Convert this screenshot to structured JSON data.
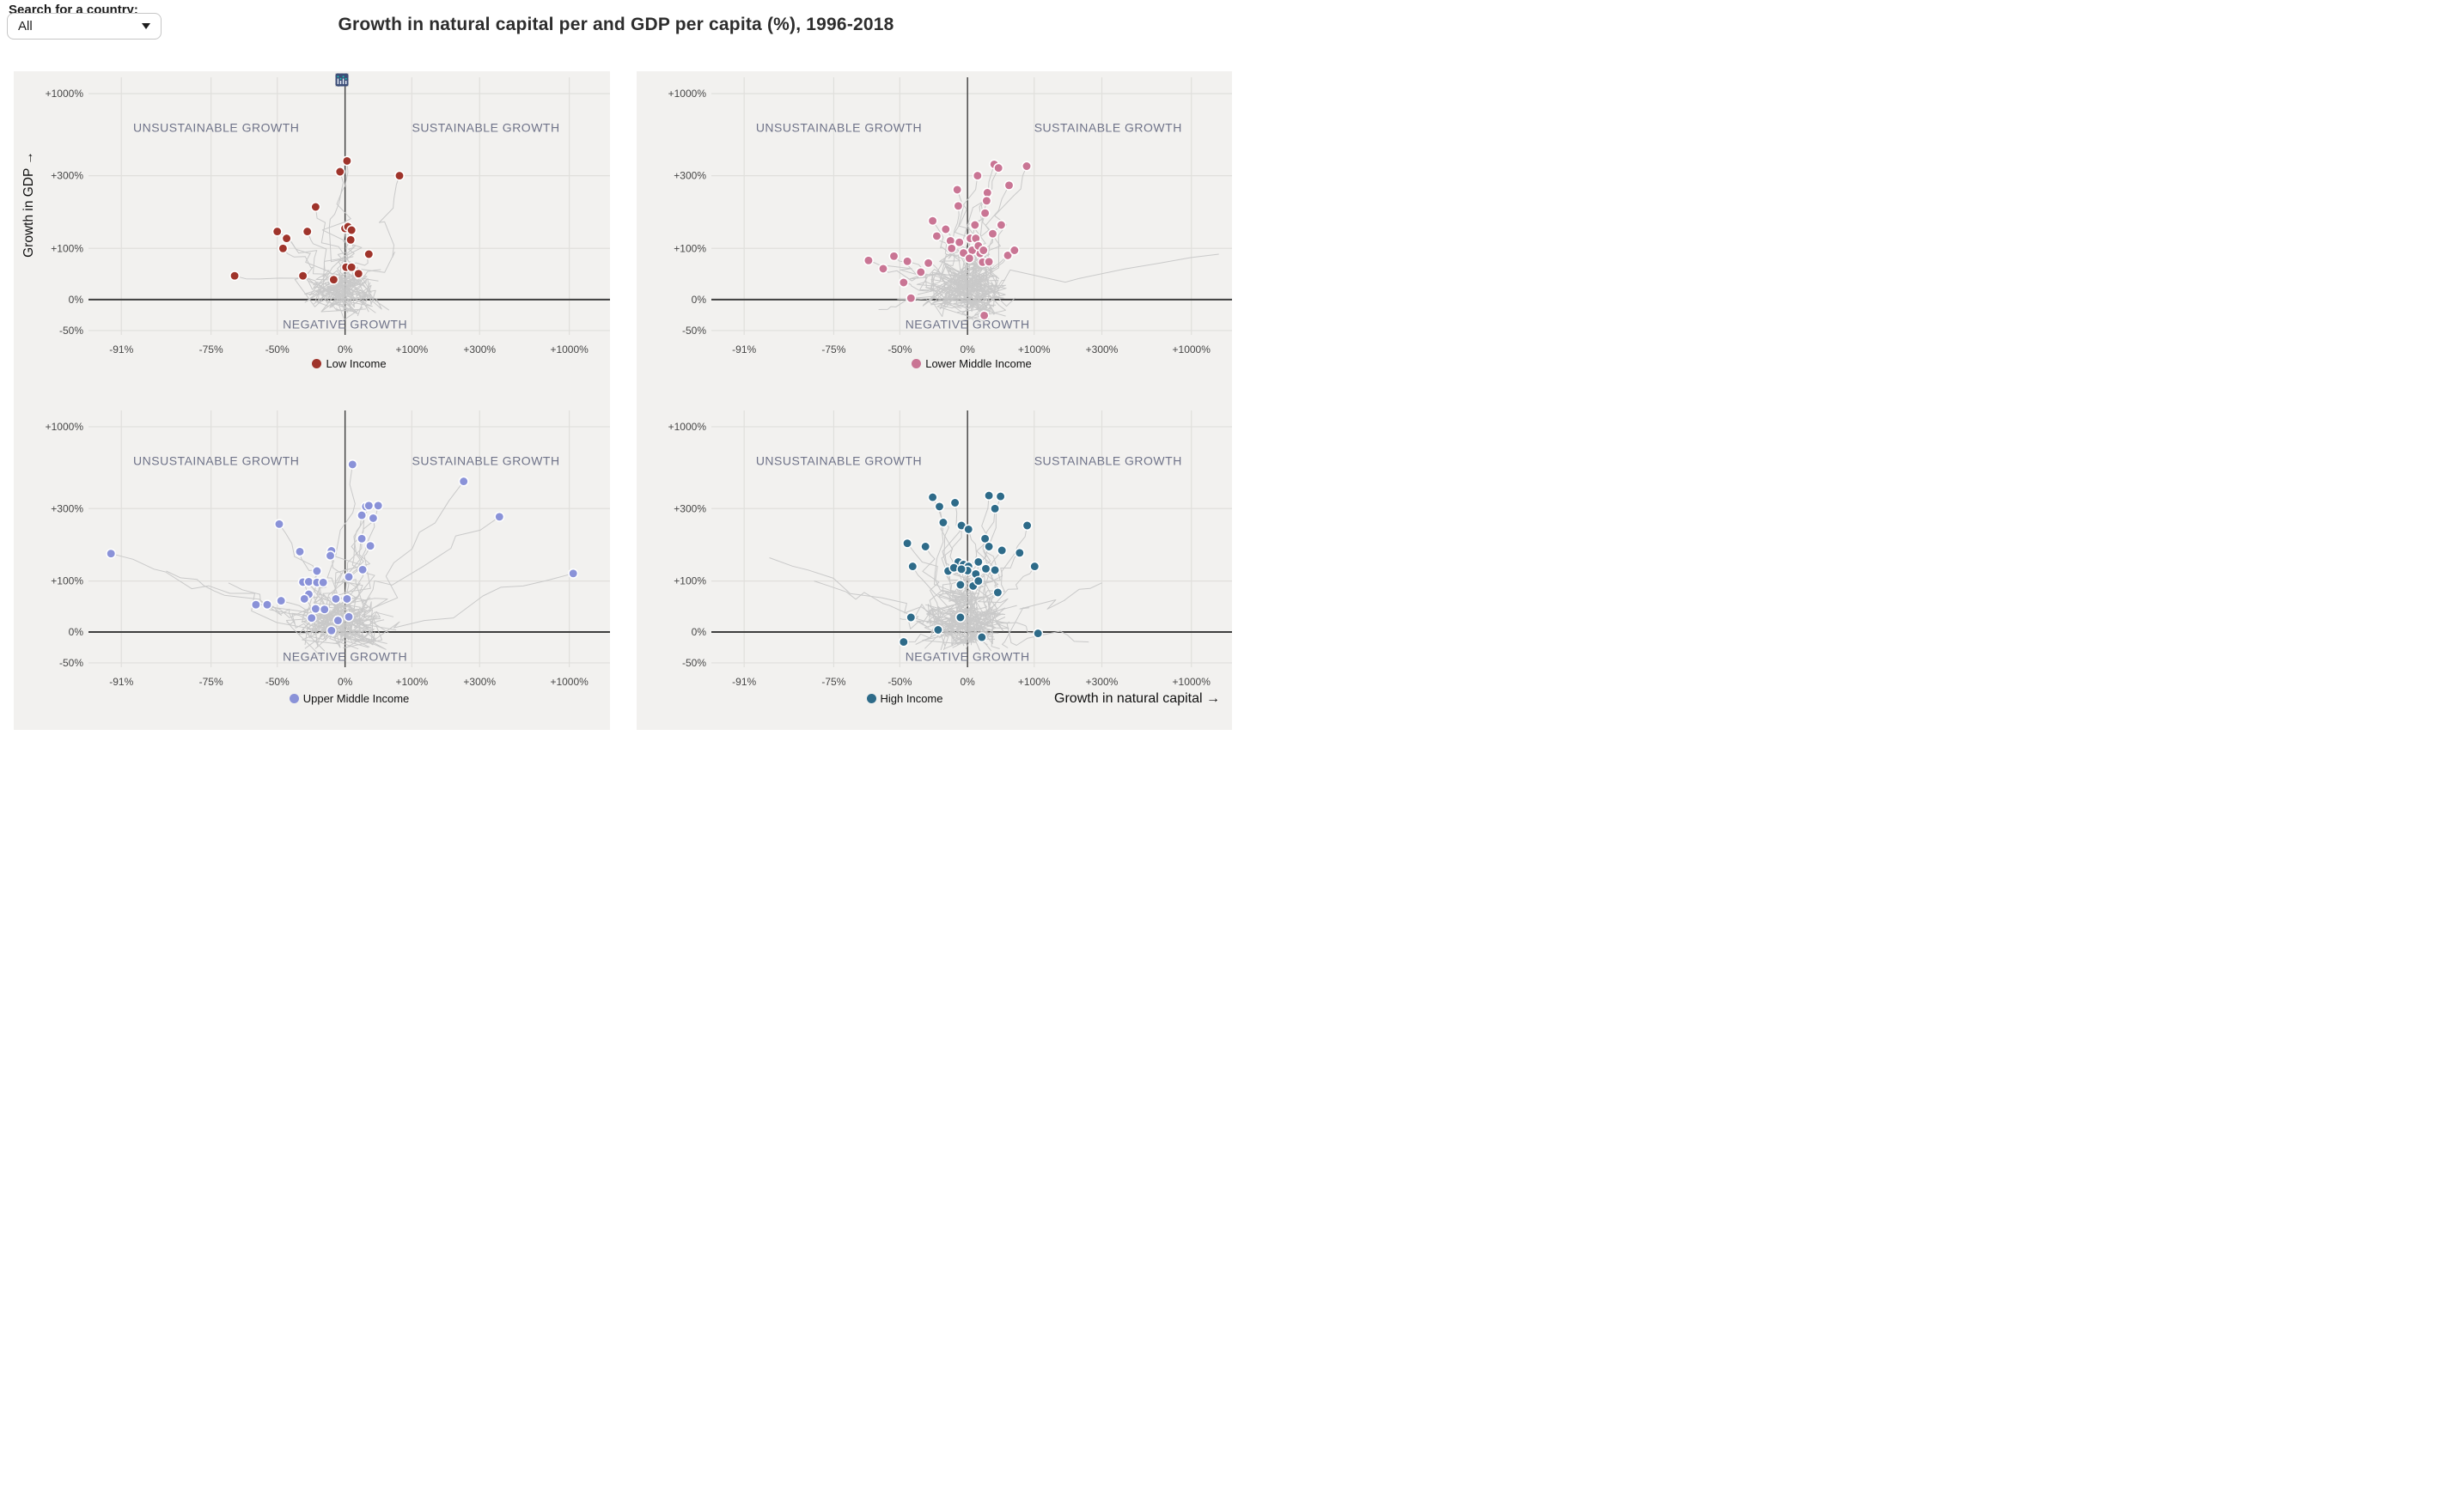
{
  "search": {
    "label": "Search for a country:",
    "value": "All"
  },
  "header": {
    "title": "Growth in natural capital per and GDP per capita (%), 1996-2018"
  },
  "modebar": {
    "icons": [
      {
        "name": "camera-icon",
        "group": 0,
        "active": false
      },
      {
        "name": "zoom-icon",
        "group": 1,
        "active": true
      },
      {
        "name": "pan-icon",
        "group": 1,
        "active": false
      },
      {
        "name": "box-select-icon",
        "group": 1,
        "active": false
      },
      {
        "name": "lasso-icon",
        "group": 1,
        "active": false
      },
      {
        "name": "zoom-in-icon",
        "group": 2,
        "active": false
      },
      {
        "name": "zoom-out-icon",
        "group": 2,
        "active": false
      },
      {
        "name": "autoscale-icon",
        "group": 2,
        "active": false
      },
      {
        "name": "home-icon",
        "group": 2,
        "active": false
      },
      {
        "name": "toggle-hover-single-icon",
        "group": 3,
        "active": true
      },
      {
        "name": "toggle-hover-double-icon",
        "group": 3,
        "active": false
      },
      {
        "name": "plotly-logo-icon",
        "group": 4,
        "active": false
      }
    ]
  },
  "chart_data": {
    "type": "scatter",
    "title": "Growth in natural capital per and GDP per capita (%), 1996-2018",
    "x_axis": {
      "title": "Growth in natural capital →",
      "tick_labels": [
        "-91%",
        "-75%",
        "-50%",
        "0%",
        "+100%",
        "+300%",
        "+1000%"
      ],
      "tick_values": [
        -91,
        -75,
        -50,
        0,
        100,
        300,
        1000
      ],
      "scale": "log10(1 + v/100)"
    },
    "y_axis": {
      "title": "Growth in GDP →",
      "tick_labels": [
        "+1000%",
        "+300%",
        "+100%",
        "0%",
        "-50%"
      ],
      "tick_values": [
        1000,
        300,
        100,
        0,
        -50
      ],
      "scale": "log10(1 + v/100)"
    },
    "quadrant_labels": {
      "top_left": "UNSUSTAINABLE GROWTH",
      "top_right": "SUSTAINABLE GROWTH",
      "bottom": "NEGATIVE GROWTH"
    },
    "facets": [
      {
        "name": "Low Income",
        "position": "top-left",
        "color": "#9f342b",
        "points": [
          [
            2,
            380
          ],
          [
            -5,
            320
          ],
          [
            76,
            300
          ],
          [
            -26,
            197
          ],
          [
            -50,
            135
          ],
          [
            -32,
            135
          ],
          [
            -45,
            120
          ],
          [
            0,
            142
          ],
          [
            3,
            146
          ],
          [
            7,
            138
          ],
          [
            6,
            117
          ],
          [
            -47,
            100
          ],
          [
            28,
            85
          ],
          [
            1,
            55
          ],
          [
            7,
            55
          ],
          [
            15,
            42
          ],
          [
            -68,
            38
          ],
          [
            -35,
            38
          ],
          [
            -11,
            31
          ]
        ],
        "extra_trail_targets": [
          [
            -20,
            15
          ],
          [
            10,
            20
          ],
          [
            -5,
            8
          ],
          [
            18,
            10
          ],
          [
            -12,
            -8
          ],
          [
            5,
            -15
          ],
          [
            25,
            28
          ],
          [
            -28,
            22
          ],
          [
            8,
            35
          ],
          [
            -15,
            30
          ],
          [
            30,
            5
          ],
          [
            -8,
            -20
          ],
          [
            45,
            50
          ]
        ]
      },
      {
        "name": "Lower Middle Income",
        "position": "top-right",
        "color": "#c97594",
        "points": [
          [
            32,
            360
          ],
          [
            38,
            340
          ],
          [
            85,
            350
          ],
          [
            11,
            300
          ],
          [
            -10,
            250
          ],
          [
            23,
            240
          ],
          [
            54,
            265
          ],
          [
            22,
            215
          ],
          [
            -9,
            200
          ],
          [
            20,
            180
          ],
          [
            -30,
            160
          ],
          [
            -27,
            125
          ],
          [
            -16,
            115
          ],
          [
            -15,
            100
          ],
          [
            3,
            120
          ],
          [
            9,
            120
          ],
          [
            14,
            87
          ],
          [
            17,
            66
          ],
          [
            25,
            67
          ],
          [
            52,
            82
          ],
          [
            -64,
            70
          ],
          [
            -53,
            80
          ],
          [
            -46,
            68
          ],
          [
            -33,
            64
          ],
          [
            -48,
            26
          ],
          [
            -44,
            2
          ],
          [
            19,
            -30
          ],
          [
            5,
            95
          ],
          [
            -4,
            88
          ],
          [
            12,
            105
          ],
          [
            -8,
            112
          ],
          [
            2,
            75
          ],
          [
            18,
            95
          ],
          [
            30,
            130
          ],
          [
            42,
            150
          ],
          [
            -38,
            45
          ],
          [
            63,
            95
          ],
          [
            -20,
            140
          ],
          [
            -58,
            52
          ],
          [
            8,
            150
          ]
        ],
        "extra_trail_targets": [
          [
            1400,
            85
          ],
          [
            -60,
            -20
          ],
          [
            15,
            18
          ],
          [
            -10,
            25
          ],
          [
            5,
            -12
          ],
          [
            22,
            40
          ],
          [
            -18,
            12
          ],
          [
            35,
            22
          ],
          [
            -25,
            35
          ],
          [
            10,
            8
          ],
          [
            28,
            -18
          ],
          [
            -5,
            42
          ],
          [
            48,
            30
          ],
          [
            -35,
            18
          ],
          [
            20,
            55
          ]
        ]
      },
      {
        "name": "Upper Middle Income",
        "position": "bottom-left",
        "color": "#8a92d8",
        "points": [
          [
            8,
            590
          ],
          [
            240,
            460
          ],
          [
            400,
            270
          ],
          [
            24,
            310
          ],
          [
            28,
            315
          ],
          [
            41,
            315
          ],
          [
            19,
            275
          ],
          [
            34,
            265
          ],
          [
            -49,
            245
          ],
          [
            19,
            200
          ],
          [
            30,
            180
          ],
          [
            -37,
            165
          ],
          [
            -13,
            167
          ],
          [
            -14,
            155
          ],
          [
            -92,
            160
          ],
          [
            -25,
            120
          ],
          [
            4,
            108
          ],
          [
            20,
            123
          ],
          [
            -35,
            97
          ],
          [
            -31,
            98
          ],
          [
            -25,
            96
          ],
          [
            -20,
            96
          ],
          [
            -31,
            67
          ],
          [
            -34,
            57
          ],
          [
            -48,
            53
          ],
          [
            -9,
            57
          ],
          [
            2,
            57
          ],
          [
            -26,
            37
          ],
          [
            -19,
            36
          ],
          [
            -29,
            21
          ],
          [
            -7,
            17
          ],
          [
            4,
            23
          ],
          [
            -60,
            45
          ],
          [
            -55,
            45
          ],
          [
            -13,
            2
          ],
          [
            1050,
            115
          ]
        ],
        "extra_trail_targets": [
          [
            -85,
            120
          ],
          [
            -70,
            95
          ],
          [
            12,
            15
          ],
          [
            -15,
            28
          ],
          [
            8,
            -18
          ],
          [
            25,
            35
          ],
          [
            -22,
            8
          ],
          [
            40,
            25
          ],
          [
            -30,
            40
          ],
          [
            18,
            -8
          ],
          [
            5,
            50
          ],
          [
            -45,
            15
          ],
          [
            30,
            60
          ],
          [
            -12,
            -22
          ],
          [
            50,
            18
          ],
          [
            -8,
            70
          ]
        ]
      },
      {
        "name": "High Income",
        "position": "bottom-right",
        "color": "#2e6b89",
        "points": [
          [
            -30,
            360
          ],
          [
            25,
            370
          ],
          [
            41,
            365
          ],
          [
            -12,
            330
          ],
          [
            -25,
            310
          ],
          [
            33,
            300
          ],
          [
            -22,
            250
          ],
          [
            -6,
            240
          ],
          [
            1,
            228
          ],
          [
            86,
            240
          ],
          [
            20,
            200
          ],
          [
            -46,
            187
          ],
          [
            -35,
            178
          ],
          [
            25,
            178
          ],
          [
            43,
            168
          ],
          [
            72,
            162
          ],
          [
            -43,
            130
          ],
          [
            -9,
            140
          ],
          [
            -18,
            120
          ],
          [
            -13,
            127
          ],
          [
            -4,
            134
          ],
          [
            1,
            130
          ],
          [
            0,
            121
          ],
          [
            -6,
            124
          ],
          [
            12,
            140
          ],
          [
            21,
            125
          ],
          [
            33,
            122
          ],
          [
            9,
            114
          ],
          [
            101,
            130
          ],
          [
            -7,
            90
          ],
          [
            6,
            87
          ],
          [
            12,
            100
          ],
          [
            37,
            71
          ],
          [
            -44,
            22
          ],
          [
            -7,
            22
          ],
          [
            -26,
            3
          ],
          [
            108,
            -3
          ],
          [
            16,
            -11
          ],
          [
            -48,
            -20
          ]
        ],
        "extra_trail_targets": [
          [
            -88,
            150
          ],
          [
            -80,
            100
          ],
          [
            300,
            95
          ],
          [
            15,
            20
          ],
          [
            -18,
            30
          ],
          [
            10,
            -15
          ],
          [
            30,
            40
          ],
          [
            -25,
            10
          ],
          [
            45,
            28
          ],
          [
            -35,
            45
          ],
          [
            20,
            -10
          ],
          [
            8,
            55
          ],
          [
            -50,
            20
          ],
          [
            35,
            65
          ],
          [
            -10,
            -25
          ],
          [
            55,
            15
          ],
          [
            250,
            -20
          ]
        ]
      }
    ]
  },
  "colors": {
    "card_background": "#f2f1ef",
    "gridline": "#e0dfdc",
    "zero_line": "#3e3e3e",
    "trail": "#c7c7c7",
    "quadrant_text": "#6f7389",
    "tick_text": "#474747",
    "modebar_icon": "#b9b9b9",
    "modebar_icon_active": "#5c5c5c",
    "modebar_tag": "#8f8f8f",
    "modebar_tag_light": "#c6c6c6",
    "plotly_logo_bg": "#3d4e78",
    "plotly_logo_dot": "#1ac3b2"
  }
}
